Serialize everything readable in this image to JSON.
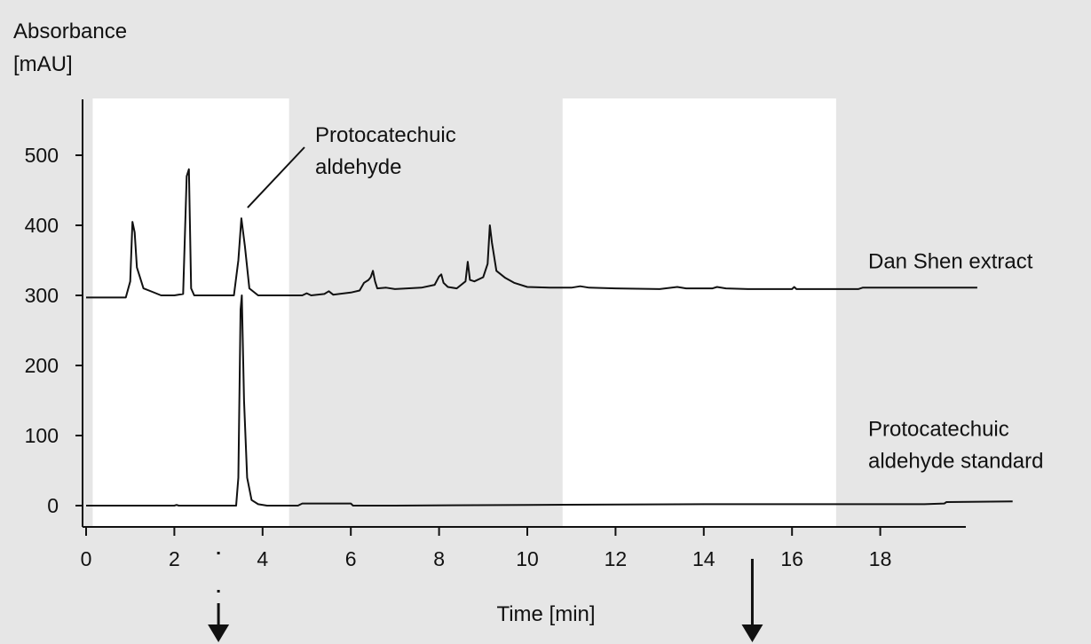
{
  "chart_data": {
    "type": "line",
    "ylabel_line1": "Absorbance",
    "ylabel_line2": "[mAU]",
    "xlabel": "Time [min]",
    "xlim": [
      0,
      20
    ],
    "ylim": [
      -30,
      520
    ],
    "x_ticks": [
      0,
      2,
      4,
      6,
      8,
      10,
      12,
      14,
      16,
      18
    ],
    "y_ticks": [
      0,
      100,
      200,
      300,
      400,
      500
    ],
    "highlight_regions": [
      [
        0.15,
        4.6
      ],
      [
        10.8,
        17.0
      ]
    ],
    "series": [
      {
        "label_lines": [
          "Dan Shen extract"
        ],
        "baseline": 297,
        "end_x": 20.2,
        "points": [
          [
            0,
            297
          ],
          [
            0.9,
            297
          ],
          [
            1.0,
            320
          ],
          [
            1.05,
            405
          ],
          [
            1.1,
            390
          ],
          [
            1.15,
            340
          ],
          [
            1.3,
            310
          ],
          [
            1.5,
            305
          ],
          [
            1.7,
            300
          ],
          [
            2.0,
            300
          ],
          [
            2.2,
            302
          ],
          [
            2.28,
            470
          ],
          [
            2.33,
            480
          ],
          [
            2.38,
            310
          ],
          [
            2.45,
            300
          ],
          [
            3.35,
            300
          ],
          [
            3.45,
            350
          ],
          [
            3.52,
            410
          ],
          [
            3.6,
            370
          ],
          [
            3.7,
            310
          ],
          [
            3.9,
            300
          ],
          [
            4.9,
            300
          ],
          [
            5.0,
            303
          ],
          [
            5.1,
            300
          ],
          [
            5.4,
            302
          ],
          [
            5.5,
            306
          ],
          [
            5.6,
            301
          ],
          [
            6.0,
            304
          ],
          [
            6.2,
            307
          ],
          [
            6.3,
            318
          ],
          [
            6.4,
            322
          ],
          [
            6.45,
            326
          ],
          [
            6.5,
            335
          ],
          [
            6.55,
            320
          ],
          [
            6.6,
            310
          ],
          [
            6.8,
            311
          ],
          [
            7.0,
            309
          ],
          [
            7.6,
            311
          ],
          [
            7.9,
            315
          ],
          [
            8.0,
            327
          ],
          [
            8.05,
            330
          ],
          [
            8.1,
            318
          ],
          [
            8.2,
            312
          ],
          [
            8.4,
            310
          ],
          [
            8.6,
            320
          ],
          [
            8.65,
            348
          ],
          [
            8.7,
            322
          ],
          [
            8.8,
            320
          ],
          [
            9.0,
            326
          ],
          [
            9.1,
            345
          ],
          [
            9.15,
            400
          ],
          [
            9.2,
            375
          ],
          [
            9.3,
            335
          ],
          [
            9.5,
            325
          ],
          [
            9.7,
            318
          ],
          [
            10.0,
            312
          ],
          [
            10.5,
            311
          ],
          [
            11.0,
            311
          ],
          [
            11.2,
            313
          ],
          [
            11.4,
            311
          ],
          [
            12.0,
            310
          ],
          [
            13.0,
            309
          ],
          [
            13.4,
            312
          ],
          [
            13.6,
            310
          ],
          [
            14.2,
            310
          ],
          [
            14.3,
            312
          ],
          [
            14.5,
            310
          ],
          [
            15.0,
            309
          ],
          [
            16.0,
            309
          ],
          [
            16.05,
            312
          ],
          [
            16.1,
            309
          ],
          [
            17.0,
            309
          ],
          [
            17.5,
            309
          ],
          [
            17.6,
            311
          ],
          [
            18.0,
            311
          ],
          [
            19.0,
            311
          ],
          [
            20.2,
            311
          ]
        ]
      },
      {
        "label_lines": [
          "Protocatechuic",
          "aldehyde standard"
        ],
        "baseline": 0,
        "end_x": 21.0,
        "points": [
          [
            0,
            0
          ],
          [
            2.0,
            0
          ],
          [
            2.05,
            1
          ],
          [
            2.1,
            0
          ],
          [
            3.4,
            0
          ],
          [
            3.45,
            40
          ],
          [
            3.5,
            280
          ],
          [
            3.53,
            300
          ],
          [
            3.58,
            150
          ],
          [
            3.65,
            40
          ],
          [
            3.75,
            8
          ],
          [
            3.9,
            2
          ],
          [
            4.1,
            0
          ],
          [
            4.8,
            0
          ],
          [
            4.9,
            3
          ],
          [
            6.0,
            3
          ],
          [
            6.05,
            0
          ],
          [
            7.0,
            0
          ],
          [
            10.0,
            1
          ],
          [
            14.0,
            2
          ],
          [
            18.0,
            2
          ],
          [
            19.0,
            2
          ],
          [
            19.45,
            3
          ],
          [
            19.5,
            5
          ],
          [
            21.0,
            6
          ]
        ]
      }
    ],
    "annotations": [
      {
        "label_lines": [
          "Protocatechuic",
          "aldehyde"
        ],
        "x": 3.6,
        "y": 410
      }
    ],
    "arrows": [
      {
        "x": 3.0,
        "dotted": true
      },
      {
        "x": 15.1,
        "dotted": false
      }
    ]
  }
}
